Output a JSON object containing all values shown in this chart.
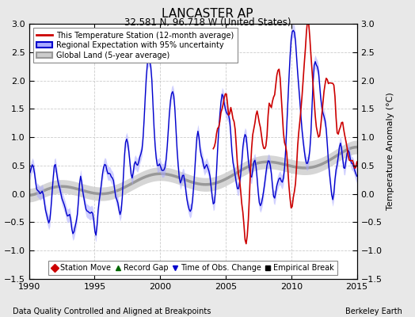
{
  "title": "LANCASTER AP",
  "subtitle": "32.581 N, 96.718 W (United States)",
  "ylabel": "Temperature Anomaly (°C)",
  "xlabel_note": "Data Quality Controlled and Aligned at Breakpoints",
  "credit": "Berkeley Earth",
  "xlim": [
    1990,
    2015
  ],
  "ylim": [
    -1.5,
    3
  ],
  "yticks": [
    -1.5,
    -1,
    -0.5,
    0,
    0.5,
    1,
    1.5,
    2,
    2.5,
    3
  ],
  "xticks": [
    1990,
    1995,
    2000,
    2005,
    2010,
    2015
  ],
  "background_color": "#e8e8e8",
  "plot_bg": "#ffffff",
  "red_color": "#cc0000",
  "blue_color": "#0000cc",
  "blue_fill": "#aaaaff",
  "gray_color": "#999999",
  "gray_fill": "#cccccc",
  "legend_items": [
    {
      "label": "This Temperature Station (12-month average)",
      "color": "#cc0000",
      "lw": 2
    },
    {
      "label": "Regional Expectation with 95% uncertainty",
      "color": "#0000cc",
      "fill": "#aaaaff"
    },
    {
      "label": "Global Land (5-year average)",
      "color": "#999999",
      "fill": "#cccccc"
    }
  ],
  "marker_items": [
    {
      "label": "Station Move",
      "marker": "D",
      "color": "#cc0000"
    },
    {
      "label": "Record Gap",
      "marker": "^",
      "color": "#006600"
    },
    {
      "label": "Time of Obs. Change",
      "marker": "v",
      "color": "#0000cc"
    },
    {
      "label": "Empirical Break",
      "marker": "s",
      "color": "#000000"
    }
  ]
}
